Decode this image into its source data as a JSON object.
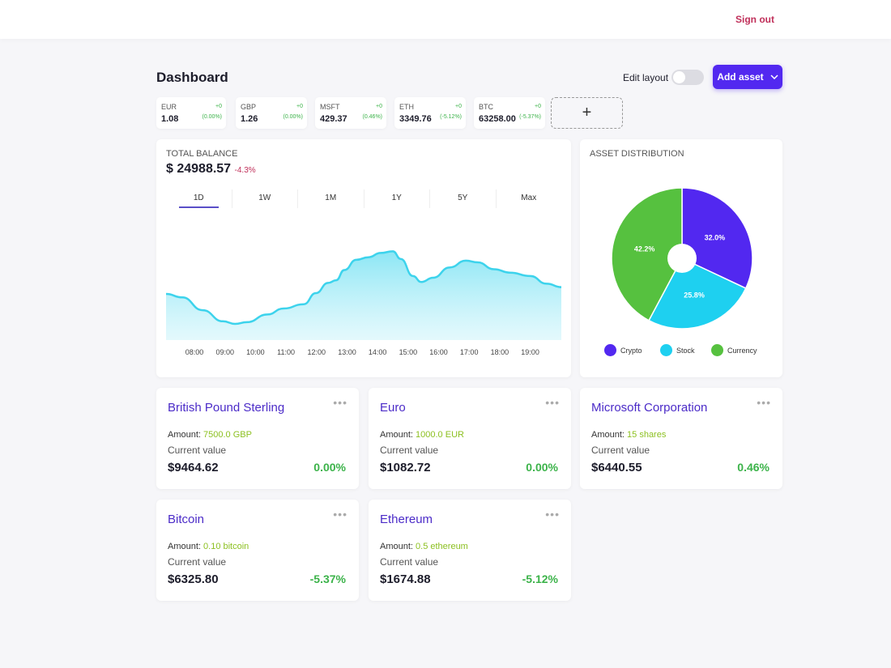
{
  "header": {
    "sign_out": "Sign out"
  },
  "page": {
    "title": "Dashboard",
    "edit_layout": "Edit layout",
    "add_asset": "Add asset",
    "edit_layout_on": false
  },
  "tickers": [
    {
      "symbol": "EUR",
      "change": "+0",
      "price": "1.08",
      "percent": "(0.00%)"
    },
    {
      "symbol": "GBP",
      "change": "+0",
      "price": "1.26",
      "percent": "(0.00%)"
    },
    {
      "symbol": "MSFT",
      "change": "+0",
      "price": "429.37",
      "percent": "(0.46%)"
    },
    {
      "symbol": "ETH",
      "change": "+0",
      "price": "3349.76",
      "percent": "(-5.12%)"
    },
    {
      "symbol": "BTC",
      "change": "+0",
      "price": "63258.00",
      "percent": "(-5.37%)"
    }
  ],
  "add_ticker": "+",
  "balance": {
    "label": "TOTAL BALANCE",
    "value": "$ 24988.57",
    "change": "-4.3%",
    "tabs": [
      "1D",
      "1W",
      "1M",
      "1Y",
      "5Y",
      "Max"
    ],
    "active_tab": 0
  },
  "distribution": {
    "label": "ASSET DISTRIBUTION"
  },
  "chart_data": [
    {
      "type": "area",
      "title": "Total balance 1D",
      "x_ticks": [
        "08:00",
        "09:00",
        "10:00",
        "11:00",
        "12:00",
        "13:00",
        "14:00",
        "15:00",
        "16:00",
        "17:00",
        "18:00",
        "19:00"
      ],
      "x": [
        7.07,
        7.6,
        8.27,
        8.93,
        9.33,
        9.72,
        10.39,
        10.92,
        11.58,
        11.98,
        12.38,
        12.64,
        12.91,
        13.3,
        13.7,
        14.1,
        14.5,
        14.76,
        15.16,
        15.43,
        15.82,
        16.36,
        16.89,
        17.28,
        17.81,
        18.34,
        19.0,
        19.54,
        20.02
      ],
      "values": [
        54,
        50,
        35,
        22,
        19,
        21,
        30,
        37,
        42,
        55,
        67,
        70,
        82,
        94,
        97,
        102,
        104,
        95,
        75,
        68,
        73,
        85,
        93,
        91,
        83,
        79,
        75,
        66,
        62
      ],
      "xlim": [
        7.07,
        20.02
      ],
      "ylim": [
        0,
        110
      ],
      "color": "#3dd3ec"
    },
    {
      "type": "pie",
      "title": "ASSET DISTRIBUTION",
      "categories": [
        "Crypto",
        "Stock",
        "Currency"
      ],
      "values": [
        32.0,
        25.8,
        42.2
      ],
      "labels": [
        "32.0%",
        "25.8%",
        "42.2%"
      ],
      "colors": [
        "#5228f0",
        "#1ed0f0",
        "#56c13f"
      ],
      "legend": "bottom"
    }
  ],
  "assets": [
    {
      "name": "British Pound Sterling",
      "amount_label": "Amount:",
      "amount": "7500.0 GBP",
      "current_label": "Current value",
      "value": "$9464.62",
      "percent": "0.00%"
    },
    {
      "name": "Euro",
      "amount_label": "Amount:",
      "amount": "1000.0 EUR",
      "current_label": "Current value",
      "value": "$1082.72",
      "percent": "0.00%"
    },
    {
      "name": "Microsoft Corporation",
      "amount_label": "Amount:",
      "amount": "15 shares",
      "current_label": "Current value",
      "value": "$6440.55",
      "percent": "0.46%"
    },
    {
      "name": "Bitcoin",
      "amount_label": "Amount:",
      "amount": "0.10 bitcoin",
      "current_label": "Current value",
      "value": "$6325.80",
      "percent": "-5.37%"
    },
    {
      "name": "Ethereum",
      "amount_label": "Amount:",
      "amount": "0.5 ethereum",
      "current_label": "Current value",
      "value": "$1674.88",
      "percent": "-5.12%"
    }
  ]
}
